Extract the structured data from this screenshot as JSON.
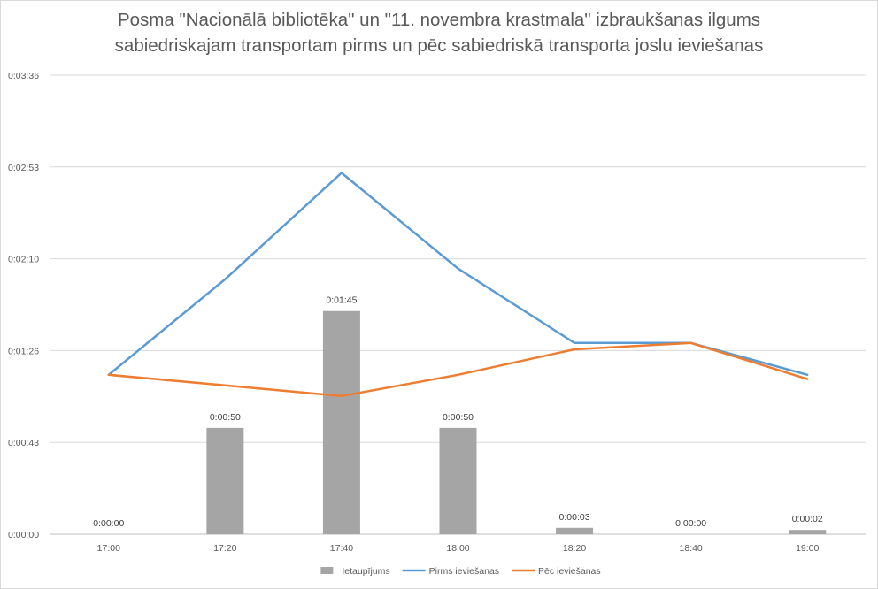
{
  "chart_data": {
    "type": "bar+line",
    "title_lines": [
      "Posma \"Nacionālā bibliotēka\" un \"11. novembra krastmala\" izbraukšanas ilgums",
      "sabiedriskajam transportam pirms un pēc sabiedriskā transporta joslu ieviešanas"
    ],
    "xlabel": "",
    "ylabel": "",
    "categories": [
      "17:00",
      "17:20",
      "17:40",
      "18:00",
      "18:20",
      "18:40",
      "19:00"
    ],
    "yticks": [
      "0:00:00",
      "0:00:43",
      "0:01:26",
      "0:02:10",
      "0:02:53",
      "0:03:36"
    ],
    "ylim_seconds": [
      0,
      216
    ],
    "grid": true,
    "legend_position": "bottom",
    "series": [
      {
        "name": "Ietaupījums",
        "kind": "bar",
        "color": "#a5a5a5",
        "values_seconds": [
          0,
          50,
          105,
          50,
          3,
          0,
          2
        ],
        "data_labels": [
          "0:00:00",
          "0:00:50",
          "0:01:45",
          "0:00:50",
          "0:00:03",
          "0:00:00",
          "0:00:02"
        ]
      },
      {
        "name": "Pirms ieviešanas",
        "kind": "line",
        "color": "#5b9bd5",
        "values_seconds": [
          75,
          120,
          170,
          125,
          90,
          90,
          75
        ]
      },
      {
        "name": "Pēc ieviešanas",
        "kind": "line",
        "color": "#ed7d31",
        "values_seconds": [
          75,
          70,
          65,
          75,
          87,
          90,
          73
        ]
      }
    ]
  }
}
